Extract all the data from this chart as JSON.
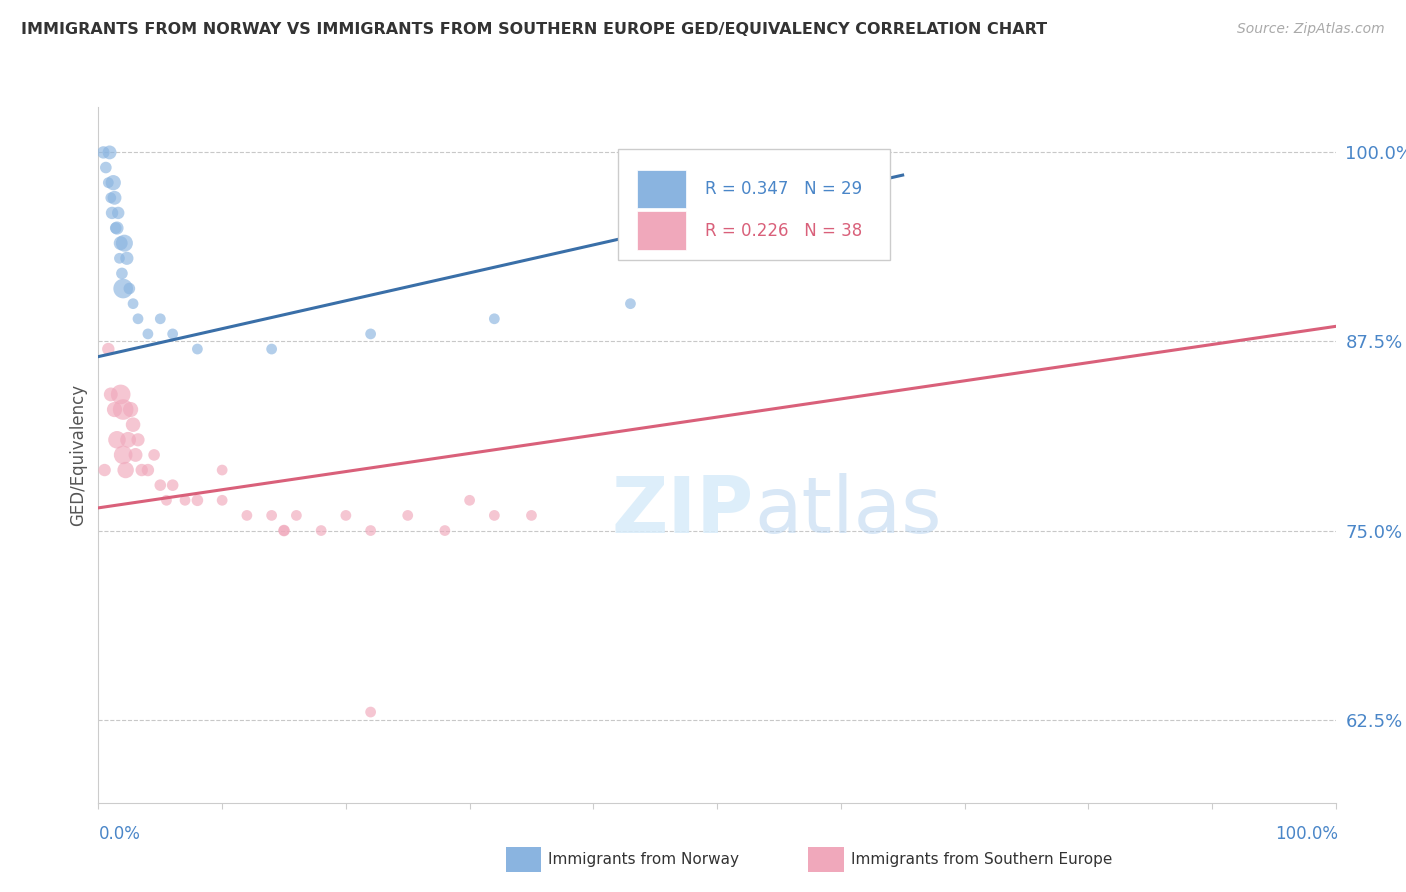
{
  "title": "IMMIGRANTS FROM NORWAY VS IMMIGRANTS FROM SOUTHERN EUROPE GED/EQUIVALENCY CORRELATION CHART",
  "source": "Source: ZipAtlas.com",
  "ylabel": "GED/Equivalency",
  "yticks": [
    62.5,
    75.0,
    87.5,
    100.0
  ],
  "ytick_labels": [
    "62.5%",
    "75.0%",
    "87.5%",
    "100.0%"
  ],
  "xlim": [
    0,
    100
  ],
  "ylim": [
    57,
    103
  ],
  "blue_scatter_x": [
    0.4,
    0.6,
    0.8,
    0.9,
    1.0,
    1.1,
    1.2,
    1.3,
    1.4,
    1.5,
    1.6,
    1.7,
    1.8,
    1.9,
    2.0,
    2.1,
    2.3,
    2.5,
    2.8,
    3.2,
    4.0,
    5.0,
    6.0,
    8.0,
    14.0,
    22.0,
    32.0,
    43.0,
    60.0
  ],
  "blue_scatter_y": [
    100,
    99,
    98,
    100,
    97,
    96,
    98,
    97,
    95,
    95,
    96,
    93,
    94,
    92,
    91,
    94,
    93,
    91,
    90,
    89,
    88,
    89,
    88,
    87,
    87,
    88,
    89,
    90,
    98
  ],
  "blue_sizes": [
    80,
    70,
    60,
    100,
    60,
    80,
    120,
    100,
    70,
    90,
    80,
    60,
    100,
    70,
    200,
    150,
    90,
    70,
    60,
    60,
    60,
    60,
    60,
    60,
    60,
    60,
    60,
    60,
    80
  ],
  "pink_scatter_x": [
    0.5,
    0.8,
    1.0,
    1.3,
    1.5,
    1.8,
    2.0,
    2.0,
    2.2,
    2.4,
    2.6,
    2.8,
    3.0,
    3.2,
    3.5,
    4.0,
    4.5,
    5.0,
    6.0,
    7.0,
    8.0,
    10.0,
    12.0,
    14.0,
    15.0,
    16.0,
    20.0,
    22.0,
    25.0,
    28.0,
    30.0,
    32.0,
    35.0,
    15.0,
    18.0,
    10.0,
    5.5,
    22.0
  ],
  "pink_scatter_y": [
    79,
    87,
    84,
    83,
    81,
    84,
    83,
    80,
    79,
    81,
    83,
    82,
    80,
    81,
    79,
    79,
    80,
    78,
    78,
    77,
    77,
    77,
    76,
    76,
    75,
    76,
    76,
    75,
    76,
    75,
    77,
    76,
    76,
    75,
    75,
    79,
    77,
    63
  ],
  "pink_sizes": [
    80,
    80,
    100,
    120,
    160,
    200,
    220,
    180,
    140,
    130,
    120,
    110,
    100,
    90,
    80,
    80,
    70,
    70,
    70,
    60,
    70,
    60,
    60,
    60,
    70,
    60,
    60,
    60,
    60,
    60,
    60,
    60,
    60,
    60,
    60,
    60,
    60,
    60
  ],
  "blue_trend_x": [
    0,
    65
  ],
  "blue_trend_y": [
    86.5,
    98.5
  ],
  "pink_trend_x": [
    0,
    100
  ],
  "pink_trend_y": [
    76.5,
    88.5
  ],
  "blue_color": "#8ab4e0",
  "blue_line_color": "#3a6fa8",
  "pink_color": "#f0a8bb",
  "pink_line_color": "#d9607a",
  "title_color": "#333333",
  "source_color": "#aaaaaa",
  "axis_label_color": "#4a86c8",
  "tick_color": "#4a86c8",
  "grid_color": "#c8c8c8",
  "watermark_color": "#d8ecfa",
  "legend_blue_text_color": "#4a86c8",
  "legend_pink_text_color": "#d9607a"
}
